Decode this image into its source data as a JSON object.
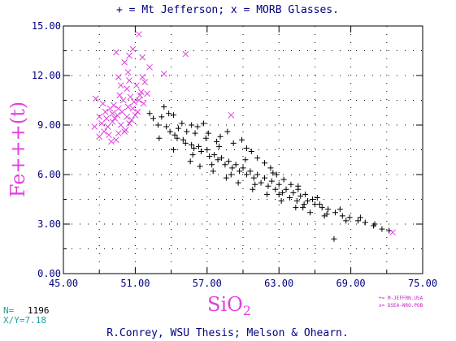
{
  "chart_data": {
    "type": "scatter",
    "title": "+ = Mt Jefferson; x = MORB Glasses.",
    "xlabel_main": "SiO",
    "xlabel_sub": "2",
    "ylabel": "Fe+++(t)",
    "xlim": [
      45,
      75
    ],
    "ylim": [
      0,
      15
    ],
    "x_ticks": [
      "45.00",
      "51.00",
      "57.00",
      "63.00",
      "69.00",
      "75.00"
    ],
    "y_ticks": [
      "0.00",
      "3.00",
      "6.00",
      "9.00",
      "12.00",
      "15.00"
    ],
    "grid": "dotted",
    "legend_entries": [
      "+= M-JEFFRN.USA",
      "x= DSEA-NRO.POB"
    ],
    "n_label": "N=",
    "n_value": "1196",
    "xy_label": "X/Y=7.18",
    "footer": "R.Conrey, WSU Thesis;  Melson & Ohearn.",
    "series": [
      {
        "marker": "+",
        "color": "#000000",
        "points": [
          [
            53.4,
            10.1
          ],
          [
            53.8,
            9.7
          ],
          [
            53.2,
            9.5
          ],
          [
            54.2,
            9.6
          ],
          [
            52.5,
            9.4
          ],
          [
            54.9,
            9.1
          ],
          [
            54.6,
            8.8
          ],
          [
            55.7,
            9.0
          ],
          [
            56.2,
            8.9
          ],
          [
            56.7,
            9.1
          ],
          [
            57.1,
            8.5
          ],
          [
            55.3,
            8.6
          ],
          [
            56.9,
            8.2
          ],
          [
            57.8,
            8.0
          ],
          [
            58.1,
            8.3
          ],
          [
            58.7,
            8.6
          ],
          [
            59.2,
            7.9
          ],
          [
            59.9,
            8.1
          ],
          [
            60.3,
            7.6
          ],
          [
            60.7,
            7.4
          ],
          [
            61.2,
            7.0
          ],
          [
            61.8,
            6.7
          ],
          [
            62.3,
            6.4
          ],
          [
            62.8,
            6.0
          ],
          [
            63.4,
            5.7
          ],
          [
            64.0,
            5.4
          ],
          [
            64.6,
            5.1
          ],
          [
            65.2,
            4.8
          ],
          [
            65.8,
            4.5
          ],
          [
            66.4,
            4.2
          ],
          [
            67.1,
            3.9
          ],
          [
            67.7,
            3.7
          ],
          [
            68.3,
            3.5
          ],
          [
            68.9,
            3.4
          ],
          [
            69.6,
            3.2
          ],
          [
            70.2,
            3.1
          ],
          [
            70.9,
            2.9
          ],
          [
            71.6,
            2.7
          ],
          [
            72.2,
            2.6
          ],
          [
            67.6,
            2.1
          ],
          [
            53.6,
            8.9
          ],
          [
            54.3,
            8.4
          ],
          [
            55.0,
            8.1
          ],
          [
            55.7,
            7.8
          ],
          [
            56.3,
            7.7
          ],
          [
            57.0,
            7.5
          ],
          [
            57.6,
            7.2
          ],
          [
            58.2,
            7.0
          ],
          [
            58.8,
            6.8
          ],
          [
            59.4,
            6.6
          ],
          [
            60.0,
            6.4
          ],
          [
            60.6,
            6.2
          ],
          [
            61.2,
            6.0
          ],
          [
            61.8,
            5.8
          ],
          [
            62.4,
            5.6
          ],
          [
            63.0,
            5.4
          ],
          [
            63.6,
            5.1
          ],
          [
            64.2,
            4.9
          ],
          [
            64.8,
            4.7
          ],
          [
            65.4,
            4.4
          ],
          [
            66.0,
            4.2
          ],
          [
            66.6,
            4.0
          ],
          [
            52.9,
            9.0
          ],
          [
            53.9,
            8.6
          ],
          [
            54.5,
            8.2
          ],
          [
            55.2,
            7.9
          ],
          [
            55.9,
            7.6
          ],
          [
            56.5,
            7.4
          ],
          [
            57.2,
            7.1
          ],
          [
            57.9,
            6.9
          ],
          [
            58.5,
            6.6
          ],
          [
            59.1,
            6.4
          ],
          [
            59.7,
            6.2
          ],
          [
            60.3,
            6.0
          ],
          [
            60.9,
            5.8
          ],
          [
            61.5,
            5.5
          ],
          [
            62.1,
            5.3
          ],
          [
            62.7,
            5.1
          ],
          [
            63.3,
            4.9
          ],
          [
            63.9,
            4.6
          ],
          [
            64.5,
            4.4
          ],
          [
            65.1,
            4.2
          ],
          [
            55.6,
            6.8
          ],
          [
            56.4,
            6.5
          ],
          [
            57.5,
            6.2
          ],
          [
            58.6,
            5.8
          ],
          [
            59.6,
            5.5
          ],
          [
            60.8,
            5.1
          ],
          [
            62.0,
            4.8
          ],
          [
            63.2,
            4.4
          ],
          [
            64.4,
            4.0
          ],
          [
            65.6,
            3.7
          ],
          [
            66.8,
            3.5
          ],
          [
            54.2,
            7.5
          ],
          [
            56.0,
            8.5
          ],
          [
            58.0,
            7.7
          ],
          [
            60.2,
            6.9
          ],
          [
            62.5,
            6.1
          ],
          [
            64.6,
            5.3
          ],
          [
            66.2,
            4.6
          ],
          [
            68.1,
            3.9
          ],
          [
            69.8,
            3.4
          ],
          [
            71.0,
            3.0
          ],
          [
            52.2,
            9.7
          ],
          [
            53.0,
            8.2
          ],
          [
            55.8,
            7.2
          ],
          [
            57.4,
            6.6
          ],
          [
            59.0,
            6.0
          ],
          [
            61.0,
            5.4
          ],
          [
            63.0,
            4.8
          ],
          [
            65.0,
            4.0
          ],
          [
            67.0,
            3.6
          ],
          [
            68.6,
            3.2
          ]
        ]
      },
      {
        "marker": "x",
        "color": "#e040e0",
        "points": [
          [
            51.3,
            14.5
          ],
          [
            50.8,
            13.6
          ],
          [
            50.5,
            13.2
          ],
          [
            49.4,
            13.4
          ],
          [
            51.6,
            13.1
          ],
          [
            50.1,
            12.8
          ],
          [
            55.2,
            13.3
          ],
          [
            53.4,
            12.1
          ],
          [
            52.2,
            12.5
          ],
          [
            49.6,
            11.9
          ],
          [
            50.5,
            11.7
          ],
          [
            51.1,
            11.4
          ],
          [
            51.4,
            10.8
          ],
          [
            50.9,
            10.4
          ],
          [
            50.4,
            10.1
          ],
          [
            49.9,
            9.8
          ],
          [
            49.5,
            9.6
          ],
          [
            49.1,
            9.2
          ],
          [
            48.7,
            8.9
          ],
          [
            48.4,
            8.6
          ],
          [
            48.0,
            8.3
          ],
          [
            47.7,
            10.6
          ],
          [
            48.3,
            10.3
          ],
          [
            48.9,
            10.0
          ],
          [
            49.3,
            9.4
          ],
          [
            49.8,
            9.0
          ],
          [
            50.2,
            8.7
          ],
          [
            50.7,
            9.3
          ],
          [
            51.2,
            9.8
          ],
          [
            51.7,
            10.3
          ],
          [
            52.0,
            10.9
          ],
          [
            50.6,
            10.7
          ],
          [
            50.0,
            10.5
          ],
          [
            49.6,
            10.0
          ],
          [
            49.1,
            9.7
          ],
          [
            48.6,
            9.4
          ],
          [
            48.2,
            9.1
          ],
          [
            48.8,
            8.4
          ],
          [
            49.4,
            8.1
          ],
          [
            50.1,
            8.6
          ],
          [
            50.5,
            9.1
          ],
          [
            51.0,
            9.6
          ],
          [
            51.5,
            11.0
          ],
          [
            51.8,
            11.6
          ],
          [
            50.3,
            11.2
          ],
          [
            49.7,
            10.8
          ],
          [
            49.2,
            10.2
          ],
          [
            48.5,
            9.8
          ],
          [
            48.0,
            9.5
          ],
          [
            47.6,
            8.9
          ],
          [
            49.0,
            8.0
          ],
          [
            49.6,
            8.5
          ],
          [
            50.3,
            9.5
          ],
          [
            50.8,
            10.0
          ],
          [
            51.3,
            10.5
          ],
          [
            51.6,
            11.9
          ],
          [
            50.4,
            12.2
          ],
          [
            49.8,
            11.4
          ],
          [
            59.0,
            9.6
          ],
          [
            72.5,
            2.5
          ]
        ]
      }
    ]
  }
}
